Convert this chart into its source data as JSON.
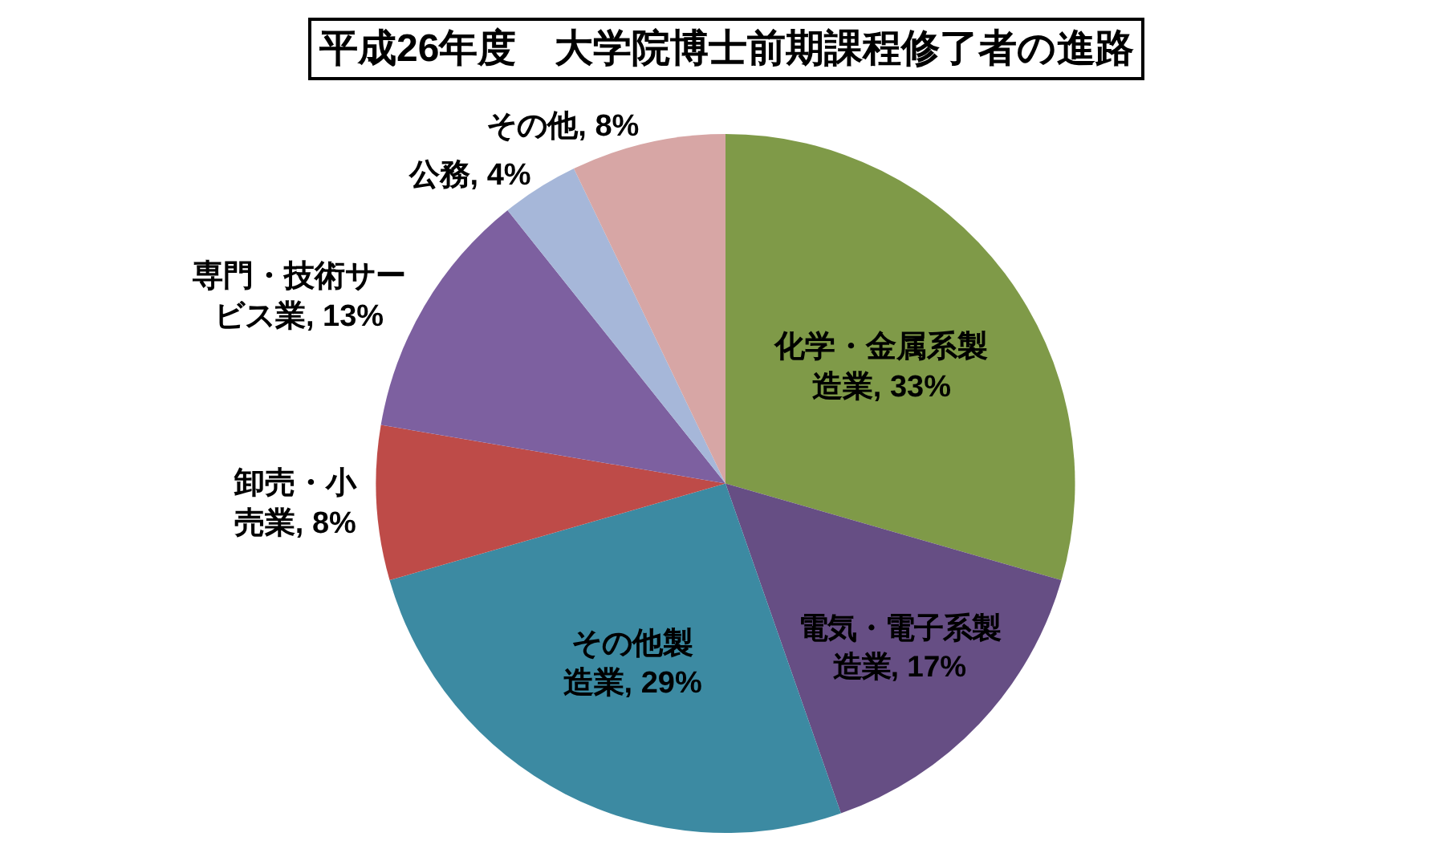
{
  "chart_data": {
    "type": "pie",
    "title": "平成26年度　大学院博士前期課程修了者の進路",
    "categories": [
      "化学・金属系製造業",
      "電気・電子系製造業",
      "その他製造業",
      "卸売・小売業",
      "専門・技術サービス業",
      "公務",
      "その他"
    ],
    "values": [
      33,
      17,
      29,
      8,
      13,
      4,
      8
    ],
    "value_labels": [
      "33%",
      "17%",
      "29%",
      "8%",
      "13%",
      "4%",
      "8%"
    ],
    "colors": [
      "#7f9a48",
      "#664e84",
      "#3c8aa2",
      "#be4b48",
      "#7d60a0",
      "#a6b7d9",
      "#d7a6a5"
    ]
  }
}
